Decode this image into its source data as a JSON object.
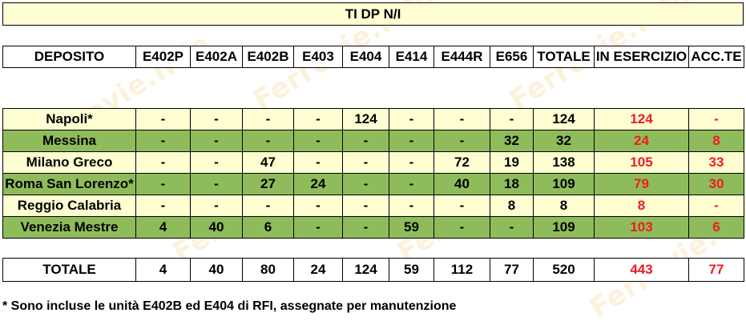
{
  "title": "TI DP N/I",
  "columns": [
    "DEPOSITO",
    "E402P",
    "E402A",
    "E402B",
    "E403",
    "E404",
    "E414",
    "E444R",
    "E656",
    "TOTALE",
    "IN ESERCIZIO",
    "ACC.TE"
  ],
  "rows": [
    {
      "cells": [
        "Napoli*",
        "-",
        "-",
        "-",
        "-",
        "124",
        "-",
        "-",
        "-",
        "124",
        "124",
        "-"
      ]
    },
    {
      "cells": [
        "Messina",
        "-",
        "-",
        "-",
        "-",
        "-",
        "-",
        "-",
        "32",
        "32",
        "24",
        "8"
      ]
    },
    {
      "cells": [
        "Milano Greco",
        "-",
        "-",
        "47",
        "-",
        "-",
        "-",
        "72",
        "19",
        "138",
        "105",
        "33"
      ]
    },
    {
      "cells": [
        "Roma San Lorenzo*",
        "-",
        "-",
        "27",
        "24",
        "-",
        "-",
        "40",
        "18",
        "109",
        "79",
        "30"
      ]
    },
    {
      "cells": [
        "Reggio Calabria",
        "-",
        "-",
        "-",
        "-",
        "-",
        "-",
        "-",
        "8",
        "8",
        "8",
        "-"
      ]
    },
    {
      "cells": [
        "Venezia Mestre",
        "4",
        "40",
        "6",
        "-",
        "-",
        "59",
        "-",
        "-",
        "109",
        "103",
        "6"
      ]
    }
  ],
  "totals": [
    "TOTALE",
    "4",
    "40",
    "80",
    "24",
    "124",
    "59",
    "112",
    "77",
    "520",
    "443",
    "77"
  ],
  "note": "* Sono incluse le unità E402B ed E404 di RFI, assegnate per manutenzione",
  "watermark": "Ferrovie.Info",
  "colors": {
    "light_row": "#fefed2",
    "green_row": "#8fbc5a",
    "highlight_text": "#ee1c25"
  }
}
